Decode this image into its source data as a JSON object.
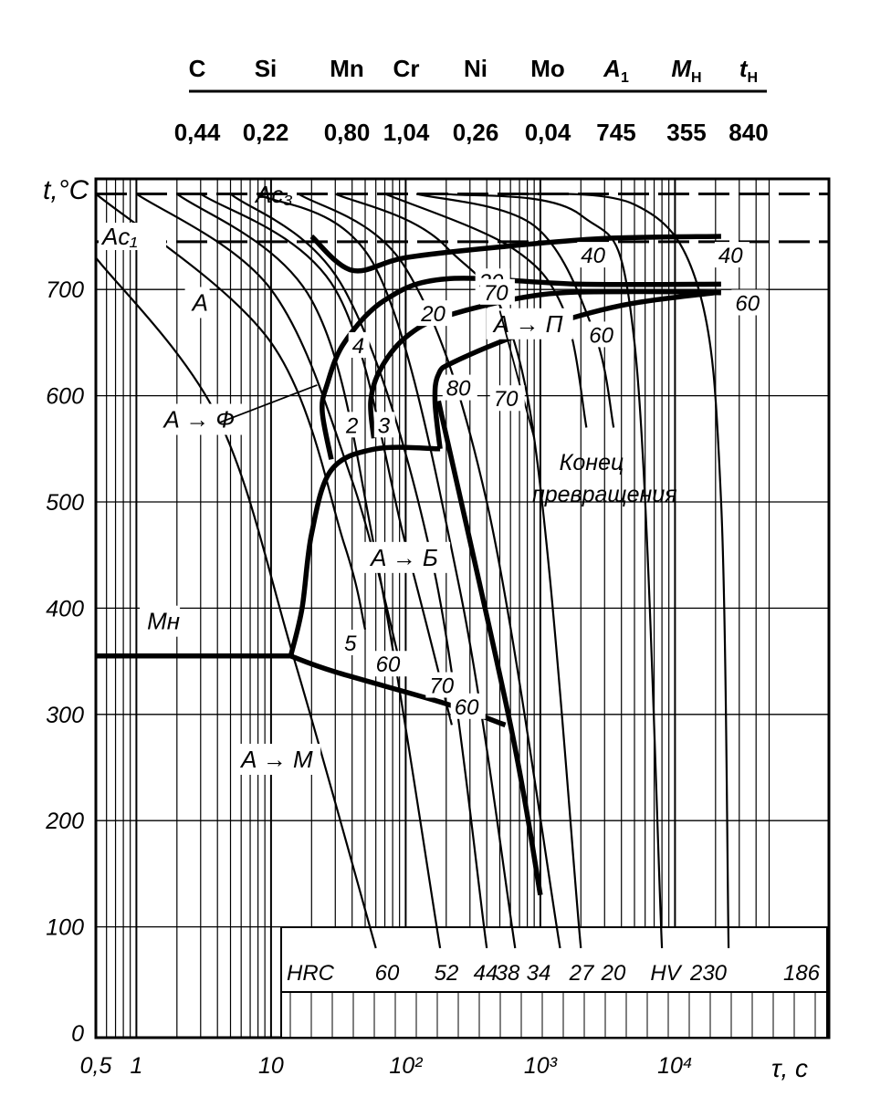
{
  "composition": {
    "headers": [
      "C",
      "Si",
      "Mn",
      "Cr",
      "Ni",
      "Mo",
      "A",
      "M",
      "t"
    ],
    "header_subscripts": [
      "",
      "",
      "",
      "",
      "",
      "",
      "1",
      "Н",
      "Н"
    ],
    "values": [
      "0,44",
      "0,22",
      "0,80",
      "1,04",
      "0,26",
      "0,04",
      "745",
      "355",
      "840"
    ]
  },
  "chart_data": {
    "type": "line",
    "x_scale": "log",
    "xlim": [
      0.5,
      50000
    ],
    "ylim": [
      0,
      790
    ],
    "ylabel": "t,°C",
    "xlabel": "τ, с",
    "x_tick_labels": [
      "0,5",
      "1",
      "10",
      "10²",
      "10³",
      "10⁴"
    ],
    "x_tick_values": [
      0.5,
      1,
      10,
      100,
      1000,
      10000
    ],
    "y_tick_labels": [
      "0",
      "100",
      "200",
      "300",
      "400",
      "500",
      "600",
      "700"
    ],
    "y_tick_values": [
      0,
      100,
      200,
      300,
      400,
      500,
      600,
      700
    ],
    "grid": true,
    "reference_lines": [
      {
        "label": "Ac₃",
        "y": 790
      },
      {
        "label": "Ac₁",
        "y": 745
      },
      {
        "label": "Mн",
        "y": 355
      }
    ],
    "transformation_curves": [
      {
        "points": [
          [
            20,
            750
          ],
          [
            40,
            718
          ],
          [
            100,
            730
          ],
          [
            500,
            740
          ],
          [
            3000,
            748
          ],
          [
            22000,
            750
          ]
        ]
      },
      {
        "points": [
          [
            28,
            540
          ],
          [
            24,
            585
          ],
          [
            26,
            610
          ],
          [
            35,
            650
          ],
          [
            70,
            690
          ],
          [
            200,
            710
          ],
          [
            2000,
            705
          ],
          [
            22000,
            705
          ]
        ]
      },
      {
        "points": [
          [
            58,
            560
          ],
          [
            55,
            595
          ],
          [
            65,
            625
          ],
          [
            100,
            655
          ],
          [
            200,
            675
          ],
          [
            1000,
            695
          ],
          [
            5000,
            698
          ],
          [
            22000,
            697
          ]
        ]
      },
      {
        "points": [
          [
            14,
            355
          ],
          [
            17,
            400
          ],
          [
            20,
            470
          ],
          [
            28,
            530
          ],
          [
            60,
            550
          ],
          [
            180,
            550
          ]
        ]
      },
      {
        "points": [
          [
            180,
            550
          ],
          [
            165,
            595
          ],
          [
            175,
            620
          ],
          [
            230,
            632
          ],
          [
            800,
            660
          ],
          [
            4000,
            685
          ],
          [
            20000,
            697
          ]
        ]
      },
      {
        "points": [
          [
            175,
            595
          ],
          [
            600,
            290
          ],
          [
            1000,
            130
          ]
        ]
      },
      {
        "points": [
          [
            14,
            355
          ],
          [
            30,
            340
          ],
          [
            200,
            310
          ],
          [
            550,
            290
          ]
        ]
      },
      {
        "points": [
          [
            0.5,
            355
          ],
          [
            14,
            355
          ]
        ]
      }
    ],
    "cooling_curves": [
      {
        "points": [
          [
            0.5,
            730
          ],
          [
            4,
            580
          ],
          [
            15,
            350
          ],
          [
            60,
            80
          ]
        ]
      },
      {
        "points": [
          [
            0.5,
            790
          ],
          [
            10,
            650
          ],
          [
            35,
            460
          ],
          [
            50,
            380
          ]
        ]
      },
      {
        "points": [
          [
            1,
            790
          ],
          [
            10,
            700
          ],
          [
            40,
            520
          ],
          [
            90,
            350
          ]
        ]
      },
      {
        "points": [
          [
            2,
            790
          ],
          [
            20,
            690
          ],
          [
            60,
            450
          ],
          [
            180,
            80
          ]
        ]
      },
      {
        "points": [
          [
            3,
            790
          ],
          [
            30,
            700
          ],
          [
            100,
            460
          ],
          [
            220,
            290
          ]
        ]
      },
      {
        "points": [
          [
            5,
            790
          ],
          [
            35,
            700
          ],
          [
            160,
            440
          ],
          [
            400,
            80
          ]
        ]
      },
      {
        "points": [
          [
            8,
            790
          ],
          [
            60,
            720
          ],
          [
            250,
            420
          ],
          [
            650,
            80
          ]
        ]
      },
      {
        "points": [
          [
            16,
            790
          ],
          [
            100,
            720
          ],
          [
            400,
            500
          ],
          [
            1400,
            80
          ]
        ]
      },
      {
        "points": [
          [
            30,
            790
          ],
          [
            200,
            740
          ],
          [
            800,
            600
          ],
          [
            2000,
            80
          ]
        ]
      },
      {
        "points": [
          [
            70,
            790
          ],
          [
            600,
            740
          ],
          [
            1500,
            680
          ],
          [
            2200,
            570
          ]
        ]
      },
      {
        "points": [
          [
            120,
            790
          ],
          [
            900,
            760
          ],
          [
            2500,
            660
          ],
          [
            3500,
            570
          ]
        ]
      },
      {
        "points": [
          [
            200,
            790
          ],
          [
            2000,
            770
          ],
          [
            5000,
            650
          ],
          [
            8000,
            80
          ]
        ]
      },
      {
        "points": [
          [
            500,
            790
          ],
          [
            5000,
            780
          ],
          [
            15000,
            700
          ],
          [
            22000,
            500
          ],
          [
            25000,
            80
          ]
        ]
      }
    ],
    "annotations": [
      {
        "text": "A",
        "x": 2.6,
        "y": 680
      },
      {
        "text": "A → Ф",
        "x": 1.6,
        "y": 570
      },
      {
        "text": "A → Б",
        "x": 55,
        "y": 440
      },
      {
        "text": "A → П",
        "x": 450,
        "y": 660
      },
      {
        "text": "A → M",
        "x": 6,
        "y": 250
      },
      {
        "text": "Mн",
        "x": 1.2,
        "y": 380
      },
      {
        "text": "Конец",
        "x": 2400,
        "y": 530
      },
      {
        "text": "превращения",
        "x": 3000,
        "y": 500
      }
    ],
    "curve_labels": [
      {
        "text": "2",
        "x": 36,
        "y": 565
      },
      {
        "text": "3",
        "x": 62,
        "y": 565
      },
      {
        "text": "4",
        "x": 40,
        "y": 640
      },
      {
        "text": "5",
        "x": 35,
        "y": 360
      },
      {
        "text": "20",
        "x": 130,
        "y": 670
      },
      {
        "text": "30",
        "x": 350,
        "y": 700
      },
      {
        "text": "40",
        "x": 2000,
        "y": 725
      },
      {
        "text": "40",
        "x": 21000,
        "y": 725
      },
      {
        "text": "60",
        "x": 2300,
        "y": 650
      },
      {
        "text": "60",
        "x": 28000,
        "y": 680
      },
      {
        "text": "70",
        "x": 380,
        "y": 690
      },
      {
        "text": "70",
        "x": 450,
        "y": 590
      },
      {
        "text": "80",
        "x": 200,
        "y": 600
      },
      {
        "text": "60",
        "x": 60,
        "y": 340
      },
      {
        "text": "70",
        "x": 150,
        "y": 320
      },
      {
        "text": "60",
        "x": 230,
        "y": 300
      }
    ],
    "hardness_row": {
      "labels": [
        "HRC",
        "60",
        "52",
        "44",
        "38",
        "34",
        "27",
        "20",
        "HV",
        "230",
        "186"
      ],
      "x": [
        5,
        55,
        200,
        400,
        580,
        800,
        1600,
        2400,
        7000,
        15000,
        90000
      ]
    }
  }
}
